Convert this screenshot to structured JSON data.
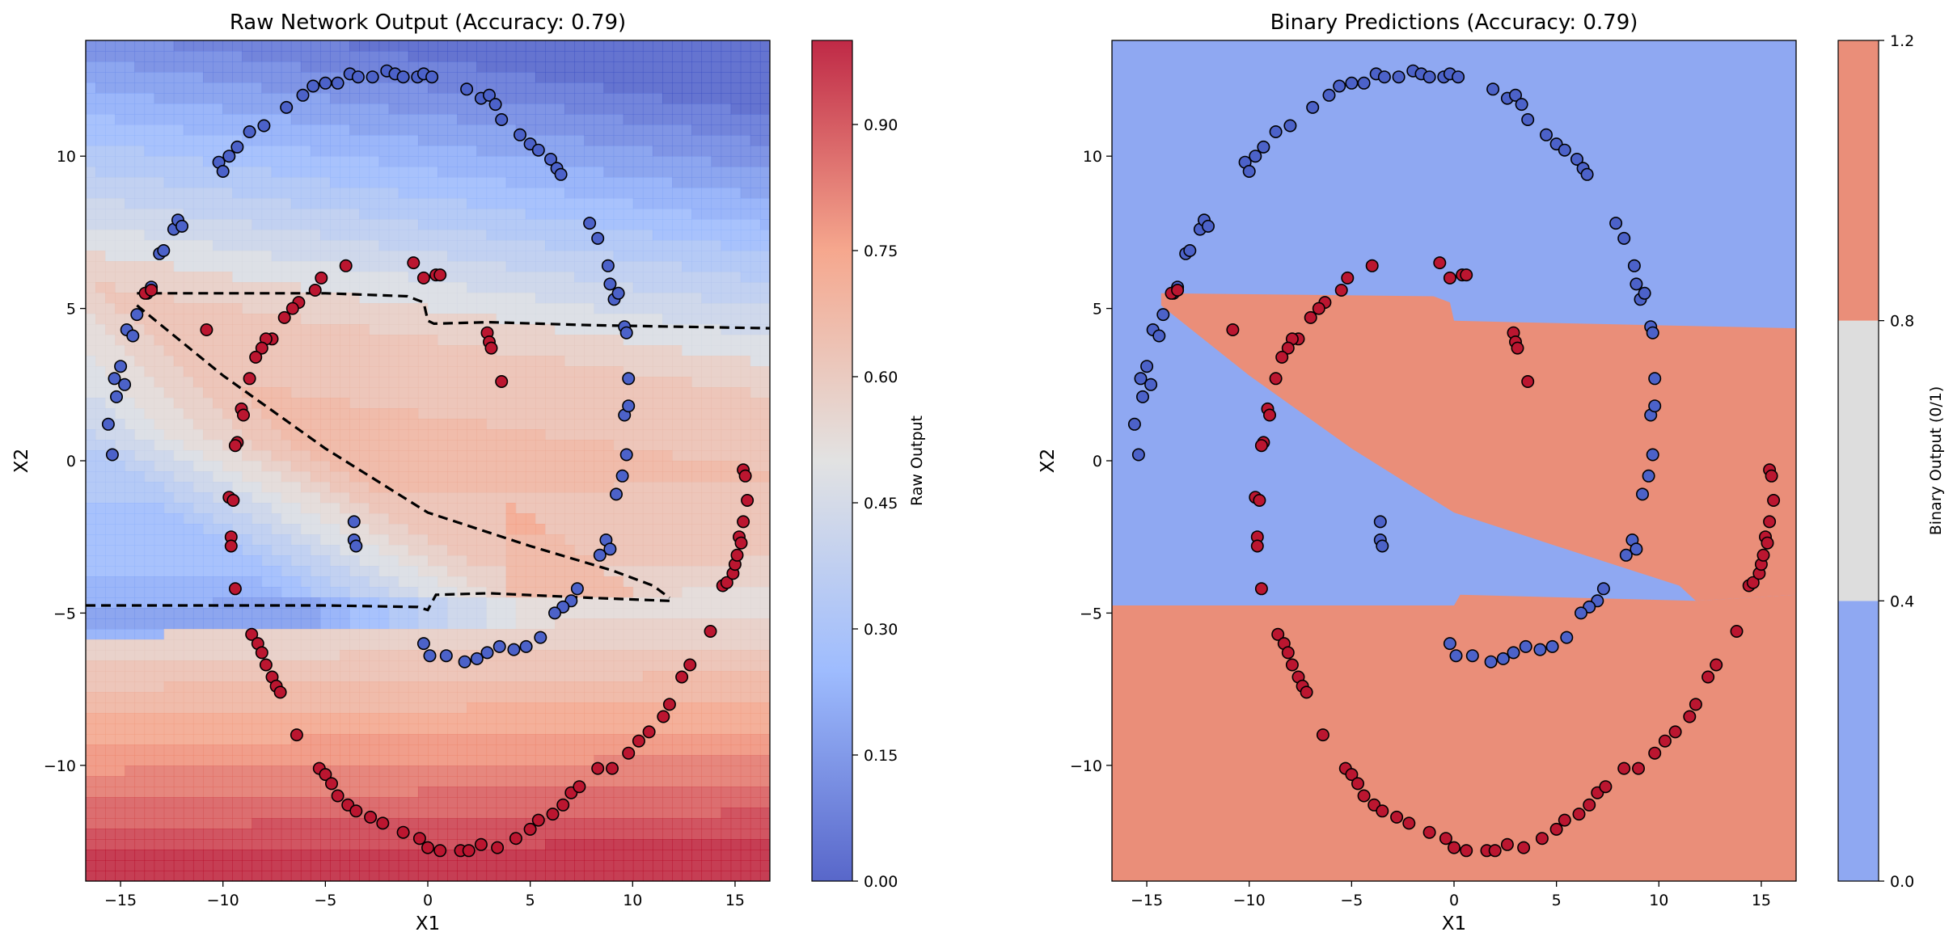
{
  "chart_data": [
    {
      "type": "contour",
      "title": "Raw Network Output (Accuracy: 0.79)",
      "xlabel": "X1",
      "ylabel": "X2",
      "xlim": [
        -16.7,
        16.7
      ],
      "ylim": [
        -13.8,
        13.8
      ],
      "xticks": [
        -15,
        -10,
        -5,
        0,
        5,
        10,
        15
      ],
      "xtick_labels": [
        "−15",
        "−10",
        "−5",
        "0",
        "5",
        "10",
        "15"
      ],
      "yticks": [
        -10,
        -5,
        0,
        5,
        10
      ],
      "ytick_labels": [
        "−10",
        "−5",
        "0",
        "5",
        "10"
      ],
      "grid": false,
      "decision_boundary": "dashed black contour at output 0.5",
      "colorbar": {
        "label": "Raw Output",
        "range": [
          0,
          1
        ],
        "ticks": [
          0,
          0.15,
          0.3,
          0.45,
          0.6,
          0.75,
          0.9
        ],
        "tick_labels": [
          "0.00",
          "0.15",
          "0.30",
          "0.45",
          "0.60",
          "0.75",
          "0.90"
        ],
        "colormap": "coolwarm"
      }
    },
    {
      "type": "contour",
      "title": "Binary Predictions (Accuracy: 0.79)",
      "xlabel": "X1",
      "ylabel": "X2",
      "xlim": [
        -16.7,
        16.7
      ],
      "ylim": [
        -13.8,
        13.8
      ],
      "xticks": [
        -15,
        -10,
        -5,
        0,
        5,
        10,
        15
      ],
      "xtick_labels": [
        "−15",
        "−10",
        "−5",
        "0",
        "5",
        "10",
        "15"
      ],
      "yticks": [
        -10,
        -5,
        0,
        5,
        10
      ],
      "ytick_labels": [
        "−10",
        "−5",
        "0",
        "5",
        "10"
      ],
      "grid": false,
      "colorbar": {
        "label": "Binary Output (0/1)",
        "range": [
          0,
          1.2
        ],
        "ticks": [
          0,
          0.4,
          0.8,
          1.2
        ],
        "tick_labels": [
          "0.0",
          "0.4",
          "0.8",
          "1.2"
        ],
        "bands": [
          {
            "from": 0,
            "to": 0.4,
            "color": "#8fa8f2"
          },
          {
            "from": 0.4,
            "to": 0.8,
            "color": "#dddddd"
          },
          {
            "from": 0.8,
            "to": 1.2,
            "color": "#ea8e79"
          }
        ]
      }
    }
  ],
  "points": {
    "blue_color": "#4c62c9",
    "red_color": "#bb1630",
    "edge_color": "#000000",
    "class0_blue": [
      [
        -15.4,
        0.2
      ],
      [
        -15.6,
        1.2
      ],
      [
        -15.2,
        2.1
      ],
      [
        -15.3,
        2.7
      ],
      [
        -15.0,
        3.1
      ],
      [
        -14.8,
        2.5
      ],
      [
        -14.7,
        4.3
      ],
      [
        -14.4,
        4.1
      ],
      [
        -14.2,
        4.8
      ],
      [
        -13.7,
        5.5
      ],
      [
        -13.5,
        5.7
      ],
      [
        -13.1,
        6.8
      ],
      [
        -12.9,
        6.9
      ],
      [
        -12.4,
        7.6
      ],
      [
        -12.2,
        7.9
      ],
      [
        -12.0,
        7.7
      ],
      [
        -10.2,
        9.8
      ],
      [
        -10.0,
        9.5
      ],
      [
        -9.7,
        10.0
      ],
      [
        -9.3,
        10.3
      ],
      [
        -8.7,
        10.8
      ],
      [
        -8.0,
        11.0
      ],
      [
        -6.9,
        11.6
      ],
      [
        -6.1,
        12.0
      ],
      [
        -5.6,
        12.3
      ],
      [
        -5.0,
        12.4
      ],
      [
        -4.4,
        12.4
      ],
      [
        -3.8,
        12.7
      ],
      [
        -3.4,
        12.6
      ],
      [
        -2.7,
        12.6
      ],
      [
        -2.0,
        12.8
      ],
      [
        -1.6,
        12.7
      ],
      [
        -1.2,
        12.6
      ],
      [
        -0.5,
        12.6
      ],
      [
        -0.2,
        12.7
      ],
      [
        0.2,
        12.6
      ],
      [
        1.9,
        12.2
      ],
      [
        2.6,
        11.9
      ],
      [
        3.0,
        12.0
      ],
      [
        3.3,
        11.7
      ],
      [
        3.6,
        11.2
      ],
      [
        4.5,
        10.7
      ],
      [
        5.0,
        10.4
      ],
      [
        5.4,
        10.2
      ],
      [
        6.0,
        9.9
      ],
      [
        6.3,
        9.6
      ],
      [
        6.5,
        9.4
      ],
      [
        7.9,
        7.8
      ],
      [
        8.3,
        7.3
      ],
      [
        8.8,
        6.4
      ],
      [
        8.9,
        5.8
      ],
      [
        9.1,
        5.3
      ],
      [
        9.3,
        5.5
      ],
      [
        9.6,
        4.4
      ],
      [
        9.7,
        4.2
      ],
      [
        9.8,
        2.7
      ],
      [
        9.6,
        1.5
      ],
      [
        9.8,
        1.8
      ],
      [
        9.7,
        0.2
      ],
      [
        9.5,
        -0.5
      ],
      [
        9.2,
        -1.1
      ],
      [
        8.7,
        -2.6
      ],
      [
        8.9,
        -2.9
      ],
      [
        8.4,
        -3.1
      ],
      [
        7.3,
        -4.2
      ],
      [
        7.0,
        -4.6
      ],
      [
        6.6,
        -4.8
      ],
      [
        6.2,
        -5.0
      ],
      [
        -3.6,
        -2.0
      ],
      [
        -3.6,
        -2.6
      ],
      [
        -3.5,
        -2.8
      ],
      [
        5.5,
        -5.8
      ],
      [
        4.8,
        -6.1
      ],
      [
        4.2,
        -6.2
      ],
      [
        3.5,
        -6.1
      ],
      [
        2.9,
        -6.3
      ],
      [
        2.4,
        -6.5
      ],
      [
        1.8,
        -6.6
      ],
      [
        0.9,
        -6.4
      ],
      [
        0.1,
        -6.4
      ],
      [
        -0.2,
        -6.0
      ]
    ],
    "class1_red": [
      [
        -13.8,
        5.5
      ],
      [
        -13.5,
        5.6
      ],
      [
        -10.8,
        4.3
      ],
      [
        -5.2,
        6.0
      ],
      [
        -5.5,
        5.6
      ],
      [
        -4.0,
        6.4
      ],
      [
        -6.3,
        5.2
      ],
      [
        -6.6,
        5.0
      ],
      [
        -7.0,
        4.7
      ],
      [
        -7.6,
        4.0
      ],
      [
        -7.9,
        4.0
      ],
      [
        -8.1,
        3.7
      ],
      [
        -8.4,
        3.4
      ],
      [
        -8.7,
        2.7
      ],
      [
        -9.1,
        1.7
      ],
      [
        -9.0,
        1.5
      ],
      [
        -9.3,
        0.6
      ],
      [
        -9.4,
        0.5
      ],
      [
        -9.7,
        -1.2
      ],
      [
        -9.5,
        -1.3
      ],
      [
        -9.6,
        -2.5
      ],
      [
        -9.6,
        -2.8
      ],
      [
        -9.4,
        -4.2
      ],
      [
        -8.6,
        -5.7
      ],
      [
        -8.3,
        -6.0
      ],
      [
        -8.1,
        -6.3
      ],
      [
        -7.9,
        -6.7
      ],
      [
        -7.6,
        -7.1
      ],
      [
        -7.4,
        -7.4
      ],
      [
        -7.2,
        -7.6
      ],
      [
        -6.4,
        -9.0
      ],
      [
        -5.3,
        -10.1
      ],
      [
        -5.0,
        -10.3
      ],
      [
        -4.7,
        -10.6
      ],
      [
        -4.4,
        -11.0
      ],
      [
        -3.9,
        -11.3
      ],
      [
        -3.5,
        -11.5
      ],
      [
        -2.8,
        -11.7
      ],
      [
        -2.2,
        -11.9
      ],
      [
        -1.2,
        -12.2
      ],
      [
        -0.4,
        -12.4
      ],
      [
        0.0,
        -12.7
      ],
      [
        0.6,
        -12.8
      ],
      [
        1.6,
        -12.8
      ],
      [
        2.0,
        -12.8
      ],
      [
        2.6,
        -12.6
      ],
      [
        3.4,
        -12.7
      ],
      [
        4.3,
        -12.4
      ],
      [
        5.0,
        -12.1
      ],
      [
        5.4,
        -11.8
      ],
      [
        6.1,
        -11.6
      ],
      [
        6.6,
        -11.3
      ],
      [
        7.0,
        -10.9
      ],
      [
        7.4,
        -10.7
      ],
      [
        8.3,
        -10.1
      ],
      [
        9.0,
        -10.1
      ],
      [
        9.8,
        -9.6
      ],
      [
        10.3,
        -9.2
      ],
      [
        10.8,
        -8.9
      ],
      [
        11.5,
        -8.4
      ],
      [
        11.8,
        -8.0
      ],
      [
        12.4,
        -7.1
      ],
      [
        12.8,
        -6.7
      ],
      [
        13.8,
        -5.6
      ],
      [
        14.4,
        -4.1
      ],
      [
        14.6,
        -4.0
      ],
      [
        14.9,
        -3.7
      ],
      [
        15.0,
        -3.4
      ],
      [
        15.2,
        -2.5
      ],
      [
        15.4,
        -2.0
      ],
      [
        15.6,
        -1.3
      ],
      [
        15.4,
        -0.3
      ],
      [
        15.5,
        -0.5
      ],
      [
        15.3,
        -2.7
      ],
      [
        15.1,
        -3.1
      ],
      [
        -0.7,
        6.5
      ],
      [
        -0.2,
        6.0
      ],
      [
        0.4,
        6.1
      ],
      [
        0.6,
        6.1
      ],
      [
        2.9,
        4.2
      ],
      [
        3.0,
        3.9
      ],
      [
        3.1,
        3.7
      ],
      [
        3.6,
        2.6
      ]
    ]
  }
}
